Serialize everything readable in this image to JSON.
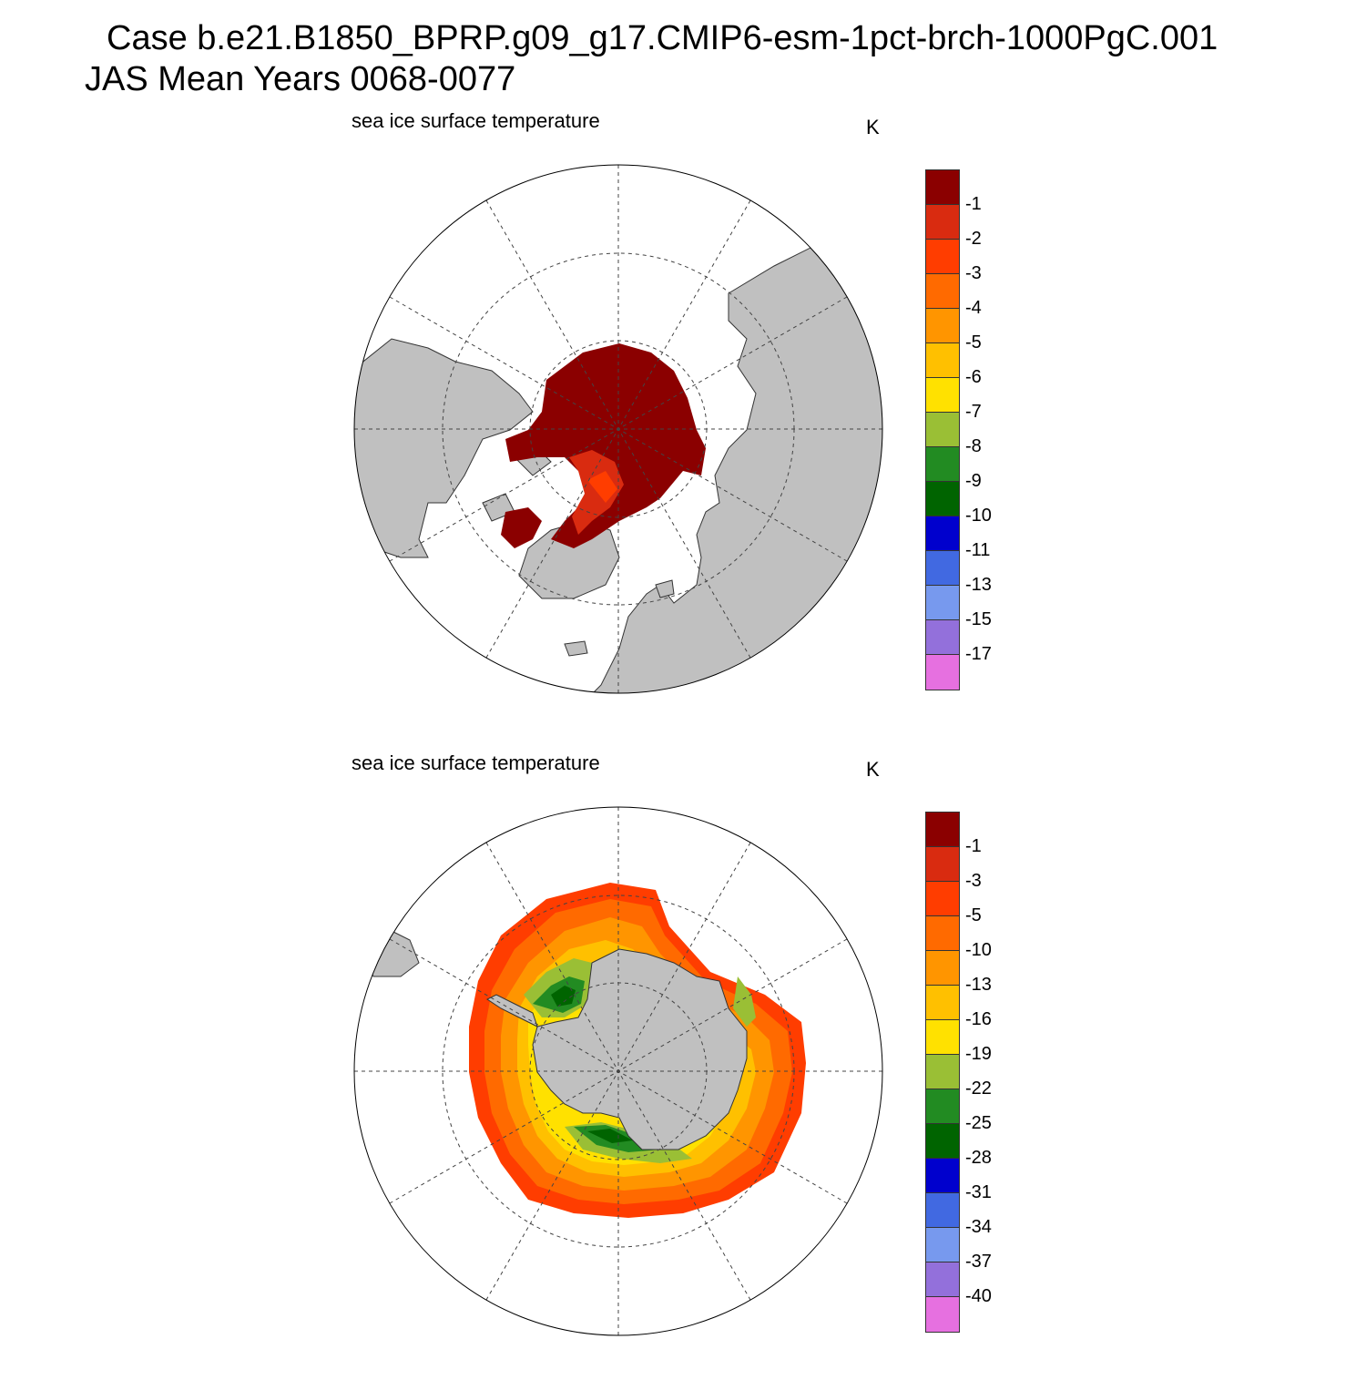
{
  "title": {
    "line1": "Case b.e21.B1850_BPRP.g09_g17.CMIP6-esm-1pct-brch-1000PgC.001",
    "line2": "JAS Mean   Years 0068-0077"
  },
  "panels": [
    {
      "hemisphere": "north",
      "label": "sea ice surface temperature",
      "unit": "K",
      "colorbar_labels": [
        "-1",
        "-2",
        "-3",
        "-4",
        "-5",
        "-6",
        "-7",
        "-8",
        "-9",
        "-10",
        "-11",
        "-13",
        "-15",
        "-17"
      ]
    },
    {
      "hemisphere": "south",
      "label": "sea ice surface temperature",
      "unit": "K",
      "colorbar_labels": [
        "-1",
        "-3",
        "-5",
        "-10",
        "-13",
        "-16",
        "-19",
        "-22",
        "-25",
        "-28",
        "-31",
        "-34",
        "-37",
        "-40"
      ]
    }
  ],
  "colorbar_colors": [
    "#8b0000",
    "#d92b10",
    "#ff3d00",
    "#ff6a00",
    "#ff9500",
    "#ffc000",
    "#ffe100",
    "#9abf35",
    "#228b22",
    "#006400",
    "#0000cd",
    "#4169e1",
    "#7799ee",
    "#9370db",
    "#e670e0"
  ],
  "land_color": "#c0c0c0"
}
